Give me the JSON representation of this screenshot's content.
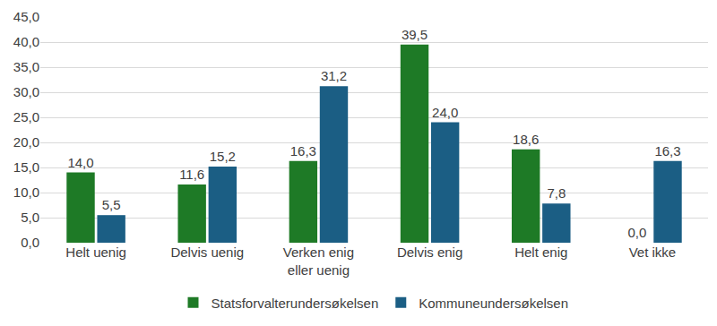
{
  "chart_data": {
    "type": "bar",
    "categories": [
      "Helt uenig",
      "Delvis uenig",
      "Verken enig eller uenig",
      "Delvis enig",
      "Helt enig",
      "Vet ikke"
    ],
    "series": [
      {
        "name": "Statsforvalterundersøkelsen",
        "color": "#1e7a26",
        "values": [
          14.0,
          11.6,
          16.3,
          39.5,
          18.6,
          0.0
        ],
        "value_labels": [
          "14,0",
          "11,6",
          "16,3",
          "39,5",
          "18,6",
          "0,0"
        ]
      },
      {
        "name": "Kommuneundersøkelsen",
        "color": "#1b5e84",
        "values": [
          5.5,
          15.2,
          31.2,
          24.0,
          7.8,
          16.3
        ],
        "value_labels": [
          "5,5",
          "15,2",
          "31,2",
          "24,0",
          "7,8",
          "16,3"
        ]
      }
    ],
    "ylim": [
      0,
      45
    ],
    "yticks": [
      {
        "value": 0,
        "label": "0,0"
      },
      {
        "value": 5,
        "label": "5,0"
      },
      {
        "value": 10,
        "label": "10,0"
      },
      {
        "value": 15,
        "label": "15,0"
      },
      {
        "value": 20,
        "label": "20,0"
      },
      {
        "value": 25,
        "label": "25,0"
      },
      {
        "value": 30,
        "label": "30,0"
      },
      {
        "value": 35,
        "label": "35,0"
      },
      {
        "value": 40,
        "label": "40,0"
      },
      {
        "value": 45,
        "label": "45,0"
      }
    ],
    "grid": true,
    "legend": "bottom",
    "data_labels": true
  }
}
